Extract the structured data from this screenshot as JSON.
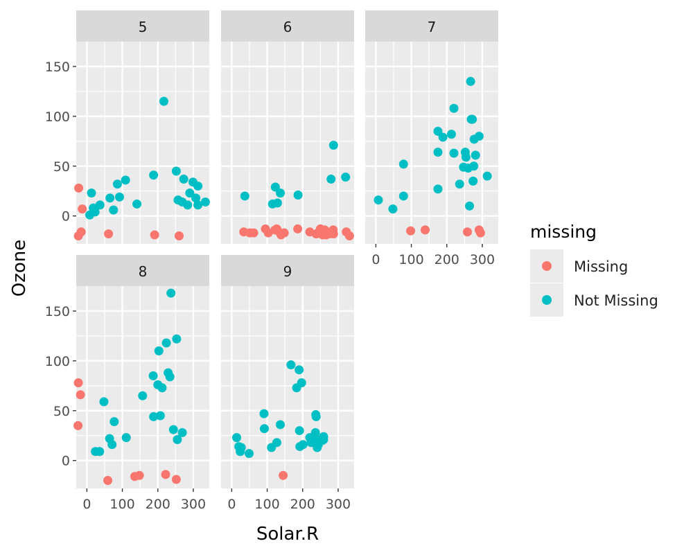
{
  "chart_data": {
    "type": "scatter",
    "facet_by": "Month",
    "xlabel": "Solar.R",
    "ylabel": "Ozone",
    "xlim": [
      -30,
      345
    ],
    "ylim": [
      -28,
      175
    ],
    "x_ticks": [
      0,
      100,
      200,
      300
    ],
    "x_tick_labels": [
      "0",
      "100",
      "200",
      "300"
    ],
    "y_ticks": [
      0,
      50,
      100,
      150
    ],
    "y_tick_labels": [
      "0",
      "50",
      "100",
      "150"
    ],
    "grid": true,
    "legend": {
      "title": "missing",
      "position": "right",
      "entries": [
        {
          "key": "Missing",
          "label": "Missing",
          "color": "#F8766D"
        },
        {
          "key": "NotMissing",
          "label": "Not Missing",
          "color": "#00BFC4"
        }
      ]
    },
    "facets": [
      {
        "label": "5",
        "points": [
          [
            -23,
            28,
            "Missing"
          ],
          [
            -13,
            7,
            "Missing"
          ],
          [
            -24,
            -20,
            "Missing"
          ],
          [
            -16,
            -16,
            "Missing"
          ],
          [
            61,
            -18,
            "Missing"
          ],
          [
            191,
            -19,
            "Missing"
          ],
          [
            260,
            -20,
            "Missing"
          ],
          [
            13,
            23,
            "NotMissing"
          ],
          [
            8,
            1,
            "NotMissing"
          ],
          [
            18,
            8,
            "NotMissing"
          ],
          [
            23,
            4,
            "NotMissing"
          ],
          [
            37,
            11,
            "NotMissing"
          ],
          [
            65,
            18,
            "NotMissing"
          ],
          [
            75,
            6,
            "NotMissing"
          ],
          [
            86,
            32,
            "NotMissing"
          ],
          [
            92,
            19,
            "NotMissing"
          ],
          [
            109,
            36,
            "NotMissing"
          ],
          [
            141,
            12,
            "NotMissing"
          ],
          [
            188,
            41,
            "NotMissing"
          ],
          [
            217,
            115,
            "NotMissing"
          ],
          [
            252,
            45,
            "NotMissing"
          ],
          [
            257,
            16,
            "NotMissing"
          ],
          [
            269,
            14,
            "NotMissing"
          ],
          [
            273,
            37,
            "NotMissing"
          ],
          [
            284,
            11,
            "NotMissing"
          ],
          [
            290,
            23,
            "NotMissing"
          ],
          [
            299,
            34,
            "NotMissing"
          ],
          [
            307,
            18,
            "NotMissing"
          ],
          [
            313,
            30,
            "NotMissing"
          ],
          [
            313,
            11,
            "NotMissing"
          ],
          [
            334,
            14,
            "NotMissing"
          ]
        ]
      },
      {
        "label": "6",
        "points": [
          [
            34,
            -16,
            "Missing"
          ],
          [
            51,
            -17,
            "Missing"
          ],
          [
            62,
            -17,
            "Missing"
          ],
          [
            95,
            -13,
            "Missing"
          ],
          [
            103,
            -17,
            "Missing"
          ],
          [
            122,
            -14,
            "Missing"
          ],
          [
            127,
            -13,
            "Missing"
          ],
          [
            130,
            -15,
            "Missing"
          ],
          [
            139,
            -19,
            "Missing"
          ],
          [
            148,
            -17,
            "Missing"
          ],
          [
            186,
            -13,
            "Missing"
          ],
          [
            220,
            -16,
            "Missing"
          ],
          [
            238,
            -18,
            "Missing"
          ],
          [
            246,
            -16,
            "Missing"
          ],
          [
            250,
            -13,
            "Missing"
          ],
          [
            256,
            -19,
            "Missing"
          ],
          [
            262,
            -14,
            "Missing"
          ],
          [
            266,
            -19,
            "Missing"
          ],
          [
            275,
            -18,
            "Missing"
          ],
          [
            286,
            -14,
            "Missing"
          ],
          [
            287,
            -18,
            "Missing"
          ],
          [
            323,
            -16,
            "Missing"
          ],
          [
            332,
            -20,
            "Missing"
          ],
          [
            37,
            20,
            "NotMissing"
          ],
          [
            115,
            12,
            "NotMissing"
          ],
          [
            123,
            29,
            "NotMissing"
          ],
          [
            129,
            13,
            "NotMissing"
          ],
          [
            137,
            23,
            "NotMissing"
          ],
          [
            187,
            21,
            "NotMissing"
          ],
          [
            280,
            37,
            "NotMissing"
          ],
          [
            287,
            71,
            "NotMissing"
          ],
          [
            321,
            39,
            "NotMissing"
          ]
        ]
      },
      {
        "label": "7",
        "points": [
          [
            98,
            -15,
            "Missing"
          ],
          [
            139,
            -14,
            "Missing"
          ],
          [
            258,
            -16,
            "Missing"
          ],
          [
            291,
            -14,
            "Missing"
          ],
          [
            295,
            -17,
            "Missing"
          ],
          [
            7,
            16,
            "NotMissing"
          ],
          [
            48,
            7,
            "NotMissing"
          ],
          [
            78,
            52,
            "NotMissing"
          ],
          [
            78,
            20,
            "NotMissing"
          ],
          [
            175,
            85,
            "NotMissing"
          ],
          [
            175,
            64,
            "NotMissing"
          ],
          [
            175,
            27,
            "NotMissing"
          ],
          [
            189,
            79,
            "NotMissing"
          ],
          [
            213,
            82,
            "NotMissing"
          ],
          [
            220,
            63,
            "NotMissing"
          ],
          [
            220,
            108,
            "NotMissing"
          ],
          [
            236,
            32,
            "NotMissing"
          ],
          [
            247,
            49,
            "NotMissing"
          ],
          [
            252,
            64,
            "NotMissing"
          ],
          [
            254,
            59,
            "NotMissing"
          ],
          [
            260,
            48,
            "NotMissing"
          ],
          [
            264,
            10,
            "NotMissing"
          ],
          [
            267,
            135,
            "NotMissing"
          ],
          [
            269,
            97,
            "NotMissing"
          ],
          [
            272,
            97,
            "NotMissing"
          ],
          [
            274,
            35,
            "NotMissing"
          ],
          [
            276,
            50,
            "NotMissing"
          ],
          [
            277,
            77,
            "NotMissing"
          ],
          [
            281,
            61,
            "NotMissing"
          ],
          [
            291,
            80,
            "NotMissing"
          ],
          [
            314,
            40,
            "NotMissing"
          ]
        ]
      },
      {
        "label": "8",
        "points": [
          [
            -24,
            78,
            "Missing"
          ],
          [
            -18,
            66,
            "Missing"
          ],
          [
            -25,
            35,
            "Missing"
          ],
          [
            59,
            -20,
            "Missing"
          ],
          [
            135,
            -16,
            "Missing"
          ],
          [
            148,
            -15,
            "Missing"
          ],
          [
            222,
            -14,
            "Missing"
          ],
          [
            252,
            -19,
            "Missing"
          ],
          [
            24,
            9,
            "NotMissing"
          ],
          [
            36,
            9,
            "NotMissing"
          ],
          [
            48,
            59,
            "NotMissing"
          ],
          [
            64,
            22,
            "NotMissing"
          ],
          [
            71,
            16,
            "NotMissing"
          ],
          [
            77,
            39,
            "NotMissing"
          ],
          [
            111,
            23,
            "NotMissing"
          ],
          [
            157,
            65,
            "NotMissing"
          ],
          [
            187,
            85,
            "NotMissing"
          ],
          [
            188,
            44,
            "NotMissing"
          ],
          [
            200,
            76,
            "NotMissing"
          ],
          [
            203,
            110,
            "NotMissing"
          ],
          [
            207,
            45,
            "NotMissing"
          ],
          [
            212,
            73,
            "NotMissing"
          ],
          [
            224,
            118,
            "NotMissing"
          ],
          [
            229,
            88,
            "NotMissing"
          ],
          [
            234,
            84,
            "NotMissing"
          ],
          [
            237,
            168,
            "NotMissing"
          ],
          [
            244,
            31,
            "NotMissing"
          ],
          [
            253,
            122,
            "NotMissing"
          ],
          [
            255,
            21,
            "NotMissing"
          ],
          [
            269,
            28,
            "NotMissing"
          ]
        ]
      },
      {
        "label": "9",
        "points": [
          [
            145,
            -15,
            "Missing"
          ],
          [
            14,
            23,
            "NotMissing"
          ],
          [
            20,
            14,
            "NotMissing"
          ],
          [
            24,
            9,
            "NotMissing"
          ],
          [
            27,
            13,
            "NotMissing"
          ],
          [
            49,
            7,
            "NotMissing"
          ],
          [
            91,
            47,
            "NotMissing"
          ],
          [
            92,
            32,
            "NotMissing"
          ],
          [
            112,
            13,
            "NotMissing"
          ],
          [
            127,
            18,
            "NotMissing"
          ],
          [
            137,
            36,
            "NotMissing"
          ],
          [
            167,
            96,
            "NotMissing"
          ],
          [
            183,
            73,
            "NotMissing"
          ],
          [
            190,
            91,
            "NotMissing"
          ],
          [
            191,
            30,
            "NotMissing"
          ],
          [
            192,
            14,
            "NotMissing"
          ],
          [
            197,
            78,
            "NotMissing"
          ],
          [
            201,
            16,
            "NotMissing"
          ],
          [
            220,
            23,
            "NotMissing"
          ],
          [
            224,
            18,
            "NotMissing"
          ],
          [
            228,
            20,
            "NotMissing"
          ],
          [
            230,
            22,
            "NotMissing"
          ],
          [
            236,
            28,
            "NotMissing"
          ],
          [
            237,
            46,
            "NotMissing"
          ],
          [
            238,
            44,
            "NotMissing"
          ],
          [
            240,
            21,
            "NotMissing"
          ],
          [
            241,
            13,
            "NotMissing"
          ],
          [
            244,
            16,
            "NotMissing"
          ],
          [
            255,
            20,
            "NotMissing"
          ],
          [
            259,
            24,
            "NotMissing"
          ],
          [
            259,
            21,
            "NotMissing"
          ]
        ]
      }
    ]
  }
}
